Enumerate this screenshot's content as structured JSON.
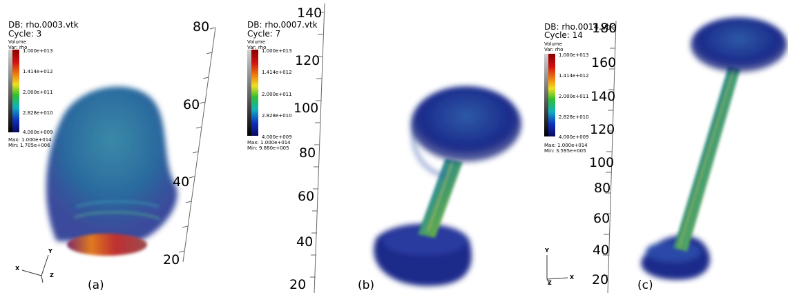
{
  "panels": [
    {
      "db": "DB: rho.0003.vtk",
      "cycle": "Cycle: 3",
      "plot_type": "Volume",
      "var": "Var: rho",
      "legend_ticks": [
        "1.000e+013",
        "1.414e+012",
        "2.000e+011",
        "2.828e+010",
        "4.000e+009"
      ],
      "max": "Max:  1.000e+014",
      "min": "Min:  1.705e+006",
      "axis_ticks": [
        "80",
        "60",
        "40",
        "20"
      ],
      "caption": "(a)",
      "triad": [
        "Y",
        "X",
        "Z"
      ]
    },
    {
      "db": "DB: rho.0007.vtk",
      "cycle": "Cycle: 7",
      "plot_type": "Volume",
      "var": "Var: rho",
      "legend_ticks": [
        "1.000e+013",
        "1.414e+012",
        "2.000e+011",
        "2.828e+010",
        "4.000e+009"
      ],
      "max": "Max:  1.000e+014",
      "min": "Min:  9.880e+005",
      "axis_ticks": [
        "140",
        "120",
        "100",
        "80",
        "60",
        "40",
        "20"
      ],
      "caption": "(b)"
    },
    {
      "db": "DB: rho.0014.vtk",
      "cycle": "Cycle: 14",
      "plot_type": "Volume",
      "var": "Var: rho",
      "legend_ticks": [
        "1.000e+013",
        "1.414e+012",
        "2.000e+011",
        "2.828e+010",
        "4.000e+009"
      ],
      "max": "Max:  1.000e+014",
      "min": "Min:  3.595e+005",
      "axis_ticks": [
        "180",
        "160",
        "140",
        "120",
        "100",
        "80",
        "60",
        "40",
        "20"
      ],
      "caption": "(c)",
      "triad": [
        "Y",
        "Z",
        "X"
      ]
    }
  ],
  "colors": {
    "deep_blue": "#1a2a8a",
    "teal": "#2a8a9a",
    "green": "#4aa84a",
    "orange": "#e07a20",
    "red": "#c02020"
  }
}
